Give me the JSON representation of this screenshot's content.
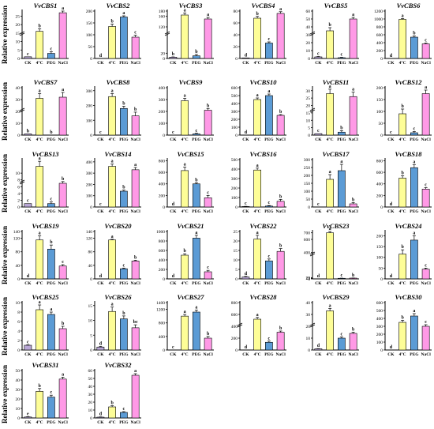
{
  "figure": {
    "ylabel": "Relative expression",
    "categories": [
      "CK",
      "4°C",
      "PEG",
      "NaCl"
    ],
    "colors": [
      "#b9a7d6",
      "#fdfd97",
      "#5b9bd5",
      "#ff99e6"
    ]
  },
  "chart_data": [
    {
      "type": "bar",
      "title": "VvCBS1",
      "categories": [
        "CK",
        "4°C",
        "PEG",
        "NaCl"
      ],
      "values": [
        1,
        16,
        3,
        27
      ],
      "errors": [
        0,
        1.5,
        1,
        1
      ],
      "letters": [
        "c",
        "b",
        "c",
        "a"
      ],
      "yticks": [
        0,
        5,
        10,
        15,
        20,
        25
      ],
      "ylim": [
        0,
        28
      ],
      "broken": true
    },
    {
      "type": "bar",
      "title": "VvCBS2",
      "categories": [
        "CK",
        "4°C",
        "PEG",
        "NaCl"
      ],
      "values": [
        0,
        135,
        175,
        90
      ],
      "errors": [
        0,
        10,
        5,
        8
      ],
      "letters": [
        "d",
        "b",
        "a",
        "c"
      ],
      "yticks": [
        0,
        50,
        100,
        150,
        200
      ],
      "ylim": [
        0,
        200
      ]
    },
    {
      "type": "bar",
      "title": "VvCBS3",
      "categories": [
        "CK",
        "4°C",
        "PEG",
        "NaCl"
      ],
      "values": [
        5,
        165,
        10,
        150
      ],
      "errors": [
        1,
        8,
        5,
        6
      ],
      "letters": [
        "b",
        "a",
        "b",
        "a"
      ],
      "yticks": [
        0,
        10,
        20,
        30,
        120,
        140,
        160,
        180
      ],
      "ylim": [
        0,
        180
      ],
      "broken": true
    },
    {
      "type": "bar",
      "title": "VvCBS4",
      "categories": [
        "CK",
        "4°C",
        "PEG",
        "NaCl"
      ],
      "values": [
        1,
        68,
        26,
        76
      ],
      "errors": [
        0,
        3,
        2,
        3
      ],
      "letters": [
        "d",
        "b",
        "c",
        "a"
      ],
      "yticks": [
        0,
        20,
        40,
        60,
        80
      ],
      "ylim": [
        0,
        80
      ]
    },
    {
      "type": "bar",
      "title": "VvCBS5",
      "categories": [
        "CK",
        "4°C",
        "PEG",
        "NaCl"
      ],
      "values": [
        2,
        35,
        1,
        50
      ],
      "errors": [
        0.5,
        4,
        0.5,
        2
      ],
      "letters": [
        "c",
        "b",
        "c",
        "a"
      ],
      "yticks": [
        0,
        10,
        20,
        30,
        40,
        50,
        60
      ],
      "ylim": [
        0,
        60
      ],
      "broken": true
    },
    {
      "type": "bar",
      "title": "VvCBS6",
      "categories": [
        "CK",
        "4°C",
        "PEG",
        "NaCl"
      ],
      "values": [
        0,
        990,
        540,
        370
      ],
      "errors": [
        0,
        20,
        30,
        20
      ],
      "letters": [
        "d",
        "a",
        "b",
        "c"
      ],
      "yticks": [
        0,
        200,
        400,
        600,
        800,
        1000,
        1200
      ],
      "ylim": [
        0,
        1200
      ]
    },
    {
      "type": "bar",
      "title": "VvCBS7",
      "categories": [
        "CK",
        "4°C",
        "PEG",
        "NaCl"
      ],
      "values": [
        1,
        31,
        0,
        32
      ],
      "errors": [
        0,
        4,
        0,
        4
      ],
      "letters": [
        "b",
        "a",
        "b",
        "a"
      ],
      "yticks": [
        0,
        10,
        20,
        30,
        40
      ],
      "ylim": [
        0,
        40
      ],
      "broken": true
    },
    {
      "type": "bar",
      "title": "VvCBS8",
      "categories": [
        "CK",
        "4°C",
        "PEG",
        "NaCl"
      ],
      "values": [
        0,
        260,
        180,
        130
      ],
      "errors": [
        0,
        20,
        15,
        25
      ],
      "letters": [
        "c",
        "a",
        "b",
        "b"
      ],
      "yticks": [
        0,
        100,
        200,
        300
      ],
      "ylim": [
        0,
        320
      ]
    },
    {
      "type": "bar",
      "title": "VvCBS9",
      "categories": [
        "CK",
        "4°C",
        "PEG",
        "NaCl"
      ],
      "values": [
        0,
        290,
        10,
        210
      ],
      "errors": [
        0,
        20,
        5,
        15
      ],
      "letters": [
        "c",
        "a",
        "c",
        "b"
      ],
      "yticks": [
        0,
        100,
        200,
        300,
        400
      ],
      "ylim": [
        0,
        400
      ]
    },
    {
      "type": "bar",
      "title": "VvCBS10",
      "categories": [
        "CK",
        "4°C",
        "PEG",
        "NaCl"
      ],
      "values": [
        0,
        450,
        500,
        250
      ],
      "errors": [
        0,
        20,
        20,
        10
      ],
      "letters": [
        "d",
        "a",
        "a",
        "b"
      ],
      "yticks": [
        0,
        100,
        200,
        300,
        400,
        500,
        600
      ],
      "ylim": [
        0,
        600
      ]
    },
    {
      "type": "bar",
      "title": "VvCBS11",
      "categories": [
        "CK",
        "4°C",
        "PEG",
        "NaCl"
      ],
      "values": [
        1,
        28,
        2,
        26
      ],
      "errors": [
        0,
        3,
        1,
        3
      ],
      "letters": [
        "c",
        "a",
        "b",
        "a"
      ],
      "yticks": [
        0,
        5,
        10,
        15,
        20,
        25,
        30
      ],
      "ylim": [
        0,
        32
      ],
      "broken": true
    },
    {
      "type": "bar",
      "title": "VvCBS12",
      "categories": [
        "CK",
        "4°C",
        "PEG",
        "NaCl"
      ],
      "values": [
        0,
        90,
        10,
        175
      ],
      "errors": [
        0,
        20,
        5,
        15
      ],
      "letters": [
        "c",
        "b",
        "c",
        "a"
      ],
      "yticks": [
        0,
        50,
        100,
        150,
        200
      ],
      "ylim": [
        0,
        200
      ]
    },
    {
      "type": "bar",
      "title": "VvCBS13",
      "categories": [
        "CK",
        "4°C",
        "PEG",
        "NaCl"
      ],
      "values": [
        1,
        12,
        1,
        7
      ],
      "errors": [
        0,
        1.5,
        0.5,
        0.5
      ],
      "letters": [
        "c",
        "a",
        "c",
        "b"
      ],
      "yticks": [
        0,
        1,
        2,
        3,
        4,
        5,
        6,
        7,
        8,
        9,
        10
      ],
      "ylim": [
        0,
        14
      ],
      "broken": true
    },
    {
      "type": "bar",
      "title": "VvCBS14",
      "categories": [
        "CK",
        "4°C",
        "PEG",
        "NaCl"
      ],
      "values": [
        0,
        360,
        140,
        330
      ],
      "errors": [
        0,
        20,
        10,
        20
      ],
      "letters": [
        "c",
        "a",
        "b",
        "a"
      ],
      "yticks": [
        0,
        100,
        200,
        300,
        400
      ],
      "ylim": [
        0,
        420
      ]
    },
    {
      "type": "bar",
      "title": "VvCBS15",
      "categories": [
        "CK",
        "4°C",
        "PEG",
        "NaCl"
      ],
      "values": [
        0,
        630,
        400,
        160
      ],
      "errors": [
        0,
        60,
        20,
        40
      ],
      "letters": [
        "d",
        "a",
        "b",
        "c"
      ],
      "yticks": [
        0,
        200,
        400,
        600,
        800
      ],
      "ylim": [
        0,
        820
      ]
    },
    {
      "type": "bar",
      "title": "VvCBS16",
      "categories": [
        "CK",
        "4°C",
        "PEG",
        "NaCl"
      ],
      "values": [
        5,
        390,
        10,
        60
      ],
      "errors": [
        2,
        20,
        5,
        20
      ],
      "letters": [
        "c",
        "a",
        "c",
        "b"
      ],
      "yticks": [
        0,
        100,
        200,
        300,
        400,
        500
      ],
      "ylim": [
        0,
        500
      ]
    },
    {
      "type": "bar",
      "title": "VvCBS17",
      "categories": [
        "CK",
        "4°C",
        "PEG",
        "NaCl"
      ],
      "values": [
        0,
        175,
        230,
        20
      ],
      "errors": [
        0,
        30,
        40,
        8
      ],
      "letters": [
        "c",
        "a",
        "a",
        "b"
      ],
      "yticks": [
        0,
        50,
        100,
        150,
        200,
        250,
        300
      ],
      "ylim": [
        0,
        300
      ]
    },
    {
      "type": "bar",
      "title": "VvCBS18",
      "categories": [
        "CK",
        "4°C",
        "PEG",
        "NaCl"
      ],
      "values": [
        0,
        500,
        680,
        310
      ],
      "errors": [
        0,
        40,
        50,
        25
      ],
      "letters": [
        "d",
        "b",
        "a",
        "c"
      ],
      "yticks": [
        0,
        200,
        400,
        600,
        800
      ],
      "ylim": [
        0,
        820
      ]
    },
    {
      "type": "bar",
      "title": "VvCBS19",
      "categories": [
        "CK",
        "4°C",
        "PEG",
        "NaCl"
      ],
      "values": [
        0,
        115,
        88,
        38
      ],
      "errors": [
        0,
        12,
        12,
        4
      ],
      "letters": [
        "d",
        "a",
        "b",
        "c"
      ],
      "yticks": [
        0,
        20,
        40,
        60,
        80,
        100,
        120,
        140
      ],
      "ylim": [
        0,
        140
      ]
    },
    {
      "type": "bar",
      "title": "VvCBS20",
      "categories": [
        "CK",
        "4°C",
        "PEG",
        "NaCl"
      ],
      "values": [
        0,
        115,
        30,
        53
      ],
      "errors": [
        0,
        2,
        2,
        2
      ],
      "letters": [
        "d",
        "a",
        "c",
        "b"
      ],
      "yticks": [
        0,
        20,
        40,
        60,
        80,
        100,
        120,
        140
      ],
      "ylim": [
        0,
        140
      ]
    },
    {
      "type": "bar",
      "title": "VvCBS21",
      "categories": [
        "CK",
        "4°C",
        "PEG",
        "NaCl"
      ],
      "values": [
        0,
        500,
        860,
        150
      ],
      "errors": [
        0,
        30,
        60,
        30
      ],
      "letters": [
        "d",
        "b",
        "a",
        "c"
      ],
      "yticks": [
        0,
        200,
        400,
        600,
        800,
        1000
      ],
      "ylim": [
        0,
        1000
      ]
    },
    {
      "type": "bar",
      "title": "VvCBS22",
      "categories": [
        "CK",
        "4°C",
        "PEG",
        "NaCl"
      ],
      "values": [
        1,
        21,
        9.5,
        14.5
      ],
      "errors": [
        0.3,
        2,
        1,
        1.5
      ],
      "letters": [
        "d",
        "a",
        "c",
        "b"
      ],
      "yticks": [
        0,
        5,
        10,
        15,
        20,
        25
      ],
      "ylim": [
        0,
        25
      ]
    },
    {
      "type": "bar",
      "title": "VvCBS23",
      "categories": [
        "CK",
        "4°C",
        "PEG",
        "NaCl"
      ],
      "values": [
        1,
        700,
        9,
        12
      ],
      "errors": [
        0.2,
        20,
        2,
        1
      ],
      "letters": [
        "d",
        "a",
        "c",
        "b"
      ],
      "yticks": [
        0,
        5,
        10,
        15,
        20,
        300,
        400,
        500,
        600,
        700
      ],
      "ylim": [
        0,
        720
      ],
      "broken": true
    },
    {
      "type": "bar",
      "title": "VvCBS24",
      "categories": [
        "CK",
        "4°C",
        "PEG",
        "NaCl"
      ],
      "values": [
        0,
        115,
        180,
        45
      ],
      "errors": [
        0,
        20,
        20,
        5
      ],
      "letters": [
        "d",
        "b",
        "a",
        "c"
      ],
      "yticks": [
        0,
        50,
        100,
        150,
        200
      ],
      "ylim": [
        0,
        220
      ]
    },
    {
      "type": "bar",
      "title": "VvCBS25",
      "categories": [
        "CK",
        "4°C",
        "PEG",
        "NaCl"
      ],
      "values": [
        1,
        8.5,
        7.5,
        4.5
      ],
      "errors": [
        0.1,
        1,
        0.5,
        0.5
      ],
      "letters": [
        "c",
        "a",
        "a",
        "b"
      ],
      "yticks": [
        0,
        2,
        4,
        6,
        8,
        10
      ],
      "ylim": [
        0,
        10
      ]
    },
    {
      "type": "bar",
      "title": "VvCBS26",
      "categories": [
        "CK",
        "4°C",
        "PEG",
        "NaCl"
      ],
      "values": [
        1,
        13,
        10.5,
        7.5
      ],
      "errors": [
        0.2,
        1.5,
        1,
        1
      ],
      "letters": [
        "d",
        "a",
        "b",
        "bc"
      ],
      "yticks": [
        0,
        5,
        10,
        15
      ],
      "ylim": [
        0,
        16
      ]
    },
    {
      "type": "bar",
      "title": "VvCBS27",
      "categories": [
        "CK",
        "4°C",
        "PEG",
        "NaCl"
      ],
      "values": [
        0,
        1000,
        1120,
        350
      ],
      "errors": [
        0,
        50,
        60,
        50
      ],
      "letters": [
        "c",
        "a",
        "a",
        "b"
      ],
      "yticks": [
        0,
        200,
        400,
        600,
        800,
        1000,
        1200,
        1400
      ],
      "ylim": [
        0,
        1400
      ]
    },
    {
      "type": "bar",
      "title": "VvCBS28",
      "categories": [
        "CK",
        "4°C",
        "PEG",
        "NaCl"
      ],
      "values": [
        0,
        520,
        130,
        300
      ],
      "errors": [
        0,
        30,
        20,
        20
      ],
      "letters": [
        "d",
        "a",
        "c",
        "b"
      ],
      "yticks": [
        0,
        200,
        400,
        600,
        800
      ],
      "ylim": [
        0,
        800
      ],
      "broken": true
    },
    {
      "type": "bar",
      "title": "VvCBS29",
      "categories": [
        "CK",
        "4°C",
        "PEG",
        "NaCl"
      ],
      "values": [
        1,
        33,
        10,
        14
      ],
      "errors": [
        0.2,
        2,
        1,
        1
      ],
      "letters": [
        "d",
        "a",
        "c",
        "b"
      ],
      "yticks": [
        0,
        10,
        20,
        30,
        40
      ],
      "ylim": [
        0,
        40
      ],
      "broken": true
    },
    {
      "type": "bar",
      "title": "VvCBS30",
      "categories": [
        "CK",
        "4°C",
        "PEG",
        "NaCl"
      ],
      "values": [
        0,
        350,
        430,
        300
      ],
      "errors": [
        0,
        25,
        30,
        20
      ],
      "letters": [
        "d",
        "b",
        "a",
        "c"
      ],
      "yticks": [
        0,
        100,
        200,
        300,
        400,
        500,
        600
      ],
      "ylim": [
        0,
        600
      ]
    },
    {
      "type": "bar",
      "title": "VvCBS31",
      "categories": [
        "CK",
        "4°C",
        "PEG",
        "NaCl"
      ],
      "values": [
        1,
        28,
        22,
        41
      ],
      "errors": [
        0.3,
        3,
        2,
        2
      ],
      "letters": [
        "e",
        "b",
        "c",
        "a"
      ],
      "yticks": [
        0,
        10,
        20,
        30,
        40,
        50
      ],
      "ylim": [
        0,
        50
      ]
    },
    {
      "type": "bar",
      "title": "VvCBS32",
      "categories": [
        "CK",
        "4°C",
        "PEG",
        "NaCl"
      ],
      "values": [
        1,
        14,
        7,
        54
      ],
      "errors": [
        0.3,
        1.5,
        1,
        2
      ],
      "letters": [
        "d",
        "b",
        "c",
        "a"
      ],
      "yticks": [
        0,
        10,
        20,
        30,
        40,
        50,
        60
      ],
      "ylim": [
        0,
        60
      ]
    }
  ]
}
